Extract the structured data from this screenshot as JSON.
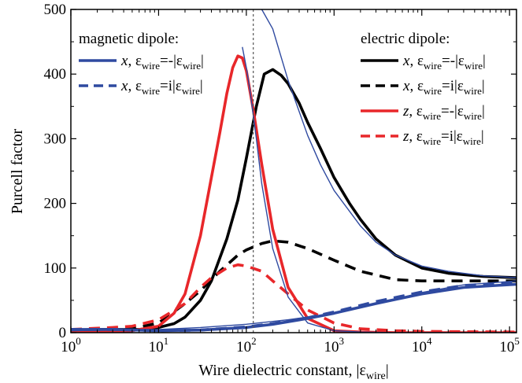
{
  "chart_data": {
    "type": "line",
    "xlabel": "Wire dielectric constant, |ε",
    "xlabel_sub": "wire",
    "xlabel_suffix": "|",
    "ylabel": "Purcell factor",
    "x_scale": "log",
    "xlim": [
      1,
      120000
    ],
    "ylim": [
      0,
      500
    ],
    "x_ticks": [
      {
        "value": 1,
        "base": "10",
        "exp": "0"
      },
      {
        "value": 10,
        "base": "10",
        "exp": "1"
      },
      {
        "value": 100,
        "base": "10",
        "exp": "2"
      },
      {
        "value": 1000,
        "base": "10",
        "exp": "3"
      },
      {
        "value": 10000,
        "base": "10",
        "exp": "4"
      },
      {
        "value": 100000,
        "base": "10",
        "exp": "5"
      }
    ],
    "y_ticks": [
      "0",
      "100",
      "200",
      "300",
      "400",
      "500"
    ],
    "reference_line_x": 120,
    "legend_magnetic": {
      "title": "magnetic dipole:",
      "entries": [
        {
          "var": "x",
          "sep": ",",
          "eps": "ε",
          "sub": "wire",
          "eq": "=-|ε",
          "sub2": "wire",
          "end": "|",
          "color": "#2f4aa0",
          "dash": false
        },
        {
          "var": "x",
          "sep": ",",
          "eps": "ε",
          "sub": "wire",
          "eq": "=i|ε",
          "sub2": "wire",
          "end": "|",
          "color": "#2f4aa0",
          "dash": true
        }
      ]
    },
    "legend_electric": {
      "title": "electric dipole:",
      "entries": [
        {
          "var": "x",
          "sep": ",",
          "eps": "ε",
          "sub": "wire",
          "eq": "=-|ε",
          "sub2": "wire",
          "end": "|",
          "color": "#000000",
          "dash": false
        },
        {
          "var": "x",
          "sep": ",",
          "eps": "ε",
          "sub": "wire",
          "eq": "=i|ε",
          "sub2": "wire",
          "end": "|",
          "color": "#000000",
          "dash": true
        },
        {
          "var": "z",
          "sep": ",",
          "eps": "ε",
          "sub": "wire",
          "eq": "=-|ε",
          "sub2": "wire",
          "end": "|",
          "color": "#e8272a",
          "dash": false
        },
        {
          "var": "z",
          "sep": ",",
          "eps": "ε",
          "sub": "wire",
          "eq": "=i|ε",
          "sub2": "wire",
          "end": "|",
          "color": "#e8272a",
          "dash": true
        }
      ]
    },
    "series": [
      {
        "color": "#000000",
        "width": 3.6,
        "dash": false,
        "x": [
          1,
          2,
          4,
          6,
          10,
          15,
          20,
          30,
          40,
          60,
          80,
          100,
          130,
          160,
          200,
          250,
          300,
          400,
          500,
          700,
          1000,
          1500,
          2000,
          3000,
          5000,
          10000,
          20000,
          50000,
          120000
        ],
        "y": [
          4,
          5,
          5,
          5,
          8,
          14,
          24,
          50,
          80,
          145,
          205,
          270,
          350,
          400,
          407,
          398,
          385,
          355,
          325,
          285,
          240,
          200,
          175,
          145,
          120,
          100,
          92,
          87,
          85
        ]
      },
      {
        "color": "#000000",
        "width": 3.6,
        "dash": true,
        "x": [
          1,
          3,
          5,
          10,
          20,
          30,
          50,
          80,
          100,
          150,
          200,
          300,
          500,
          1000,
          2000,
          5000,
          10000,
          30000,
          120000
        ],
        "y": [
          5,
          5,
          6,
          15,
          45,
          65,
          95,
          120,
          128,
          138,
          142,
          140,
          130,
          112,
          95,
          82,
          80,
          80,
          80
        ]
      },
      {
        "color": "#e8272a",
        "width": 3.6,
        "dash": false,
        "x": [
          1,
          3,
          5,
          10,
          15,
          20,
          30,
          40,
          50,
          60,
          70,
          80,
          90,
          100,
          120,
          150,
          200,
          300,
          500,
          1000,
          2000,
          5000,
          120000
        ],
        "y": [
          0,
          1,
          3,
          10,
          30,
          60,
          150,
          240,
          310,
          370,
          410,
          428,
          425,
          405,
          345,
          260,
          160,
          70,
          22,
          3,
          1,
          0,
          0
        ]
      },
      {
        "color": "#e8272a",
        "width": 3.6,
        "dash": true,
        "x": [
          1,
          3,
          5,
          10,
          20,
          30,
          40,
          60,
          80,
          100,
          150,
          200,
          300,
          500,
          1000,
          2000,
          5000,
          10000,
          120000
        ],
        "y": [
          5,
          8,
          10,
          20,
          45,
          70,
          85,
          100,
          105,
          103,
          95,
          80,
          60,
          35,
          15,
          6,
          3,
          2,
          1
        ]
      },
      {
        "color": "#2f4aa0",
        "width": 3.6,
        "dash": false,
        "x": [
          1,
          3,
          10,
          30,
          100,
          200,
          500,
          1000,
          3000,
          10000,
          30000,
          120000
        ],
        "y": [
          5,
          5,
          3,
          4,
          8,
          13,
          22,
          30,
          45,
          60,
          70,
          75
        ]
      },
      {
        "color": "#2f4aa0",
        "width": 3.6,
        "dash": true,
        "x": [
          1,
          3,
          10,
          30,
          100,
          200,
          500,
          1000,
          3000,
          10000,
          30000,
          120000
        ],
        "y": [
          5,
          5,
          3,
          4,
          9,
          14,
          23,
          32,
          48,
          63,
          73,
          78
        ]
      },
      {
        "color": "#2f4aa0",
        "width": 1.4,
        "dash": false,
        "x": [
          90,
          100,
          110,
          130,
          150,
          200,
          300,
          500,
          1000,
          2000,
          5000,
          120000
        ],
        "y": [
          442,
          410,
          375,
          300,
          230,
          130,
          55,
          15,
          3,
          1,
          0,
          0
        ]
      },
      {
        "color": "#2f4aa0",
        "width": 1.4,
        "dash": false,
        "x": [
          1,
          3,
          10,
          30,
          100,
          300,
          1000,
          3000,
          10000,
          30000,
          120000
        ],
        "y": [
          3,
          4,
          5,
          8,
          13,
          20,
          30,
          45,
          62,
          74,
          80
        ]
      },
      {
        "color": "#2f4aa0",
        "width": 1.4,
        "dash": false,
        "x": [
          150,
          200,
          300,
          500,
          700,
          1000,
          2000,
          3000,
          5000,
          10000,
          20000,
          50000,
          120000
        ],
        "y": [
          500,
          470,
          390,
          305,
          260,
          220,
          165,
          140,
          120,
          103,
          95,
          88,
          85
        ]
      }
    ]
  }
}
